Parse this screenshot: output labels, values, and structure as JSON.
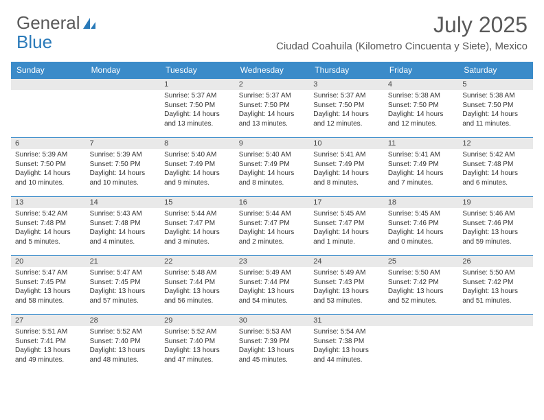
{
  "logo": {
    "word1": "General",
    "word2": "Blue"
  },
  "colors": {
    "header_bg": "#3b8bc9",
    "row_divider": "#3b8bc9",
    "daynum_bg": "#e9e9e9",
    "logo_gray": "#5a5a5a",
    "logo_blue": "#2a7ab9",
    "title_color": "#595959"
  },
  "title": "July 2025",
  "location": "Ciudad Coahuila (Kilometro Cincuenta y Siete), Mexico",
  "day_headers": [
    "Sunday",
    "Monday",
    "Tuesday",
    "Wednesday",
    "Thursday",
    "Friday",
    "Saturday"
  ],
  "first_weekday": 2,
  "days": [
    {
      "n": 1,
      "sunrise": "5:37 AM",
      "sunset": "7:50 PM",
      "daylight": "14 hours and 13 minutes."
    },
    {
      "n": 2,
      "sunrise": "5:37 AM",
      "sunset": "7:50 PM",
      "daylight": "14 hours and 13 minutes."
    },
    {
      "n": 3,
      "sunrise": "5:37 AM",
      "sunset": "7:50 PM",
      "daylight": "14 hours and 12 minutes."
    },
    {
      "n": 4,
      "sunrise": "5:38 AM",
      "sunset": "7:50 PM",
      "daylight": "14 hours and 12 minutes."
    },
    {
      "n": 5,
      "sunrise": "5:38 AM",
      "sunset": "7:50 PM",
      "daylight": "14 hours and 11 minutes."
    },
    {
      "n": 6,
      "sunrise": "5:39 AM",
      "sunset": "7:50 PM",
      "daylight": "14 hours and 10 minutes."
    },
    {
      "n": 7,
      "sunrise": "5:39 AM",
      "sunset": "7:50 PM",
      "daylight": "14 hours and 10 minutes."
    },
    {
      "n": 8,
      "sunrise": "5:40 AM",
      "sunset": "7:49 PM",
      "daylight": "14 hours and 9 minutes."
    },
    {
      "n": 9,
      "sunrise": "5:40 AM",
      "sunset": "7:49 PM",
      "daylight": "14 hours and 8 minutes."
    },
    {
      "n": 10,
      "sunrise": "5:41 AM",
      "sunset": "7:49 PM",
      "daylight": "14 hours and 8 minutes."
    },
    {
      "n": 11,
      "sunrise": "5:41 AM",
      "sunset": "7:49 PM",
      "daylight": "14 hours and 7 minutes."
    },
    {
      "n": 12,
      "sunrise": "5:42 AM",
      "sunset": "7:48 PM",
      "daylight": "14 hours and 6 minutes."
    },
    {
      "n": 13,
      "sunrise": "5:42 AM",
      "sunset": "7:48 PM",
      "daylight": "14 hours and 5 minutes."
    },
    {
      "n": 14,
      "sunrise": "5:43 AM",
      "sunset": "7:48 PM",
      "daylight": "14 hours and 4 minutes."
    },
    {
      "n": 15,
      "sunrise": "5:44 AM",
      "sunset": "7:47 PM",
      "daylight": "14 hours and 3 minutes."
    },
    {
      "n": 16,
      "sunrise": "5:44 AM",
      "sunset": "7:47 PM",
      "daylight": "14 hours and 2 minutes."
    },
    {
      "n": 17,
      "sunrise": "5:45 AM",
      "sunset": "7:47 PM",
      "daylight": "14 hours and 1 minute."
    },
    {
      "n": 18,
      "sunrise": "5:45 AM",
      "sunset": "7:46 PM",
      "daylight": "14 hours and 0 minutes."
    },
    {
      "n": 19,
      "sunrise": "5:46 AM",
      "sunset": "7:46 PM",
      "daylight": "13 hours and 59 minutes."
    },
    {
      "n": 20,
      "sunrise": "5:47 AM",
      "sunset": "7:45 PM",
      "daylight": "13 hours and 58 minutes."
    },
    {
      "n": 21,
      "sunrise": "5:47 AM",
      "sunset": "7:45 PM",
      "daylight": "13 hours and 57 minutes."
    },
    {
      "n": 22,
      "sunrise": "5:48 AM",
      "sunset": "7:44 PM",
      "daylight": "13 hours and 56 minutes."
    },
    {
      "n": 23,
      "sunrise": "5:49 AM",
      "sunset": "7:44 PM",
      "daylight": "13 hours and 54 minutes."
    },
    {
      "n": 24,
      "sunrise": "5:49 AM",
      "sunset": "7:43 PM",
      "daylight": "13 hours and 53 minutes."
    },
    {
      "n": 25,
      "sunrise": "5:50 AM",
      "sunset": "7:42 PM",
      "daylight": "13 hours and 52 minutes."
    },
    {
      "n": 26,
      "sunrise": "5:50 AM",
      "sunset": "7:42 PM",
      "daylight": "13 hours and 51 minutes."
    },
    {
      "n": 27,
      "sunrise": "5:51 AM",
      "sunset": "7:41 PM",
      "daylight": "13 hours and 49 minutes."
    },
    {
      "n": 28,
      "sunrise": "5:52 AM",
      "sunset": "7:40 PM",
      "daylight": "13 hours and 48 minutes."
    },
    {
      "n": 29,
      "sunrise": "5:52 AM",
      "sunset": "7:40 PM",
      "daylight": "13 hours and 47 minutes."
    },
    {
      "n": 30,
      "sunrise": "5:53 AM",
      "sunset": "7:39 PM",
      "daylight": "13 hours and 45 minutes."
    },
    {
      "n": 31,
      "sunrise": "5:54 AM",
      "sunset": "7:38 PM",
      "daylight": "13 hours and 44 minutes."
    }
  ],
  "labels": {
    "sunrise": "Sunrise:",
    "sunset": "Sunset:",
    "daylight": "Daylight:"
  }
}
